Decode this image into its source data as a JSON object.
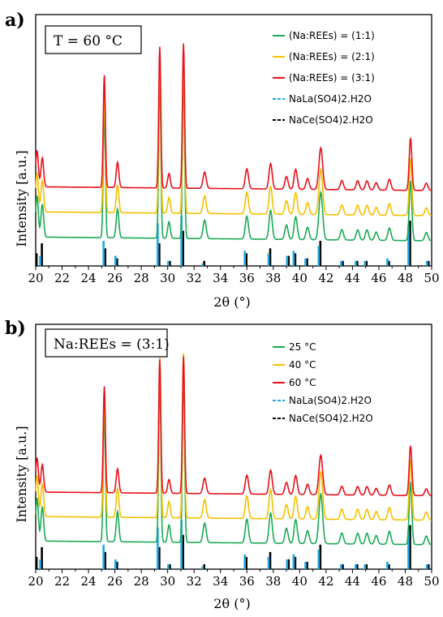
{
  "chart_data": [
    {
      "type": "line",
      "panel_label": "a)",
      "condition_label": "T = 60 °C",
      "xlabel": "2θ (°)",
      "ylabel": "Intensity [a.u.]",
      "xlim": [
        20,
        50
      ],
      "xticks": [
        "20",
        "22",
        "24",
        "26",
        "28",
        "29",
        "30",
        "31",
        "32",
        "33",
        "34",
        "35",
        "36",
        "37",
        "38",
        "39",
        "40",
        "41",
        "42",
        "43",
        "44",
        "45",
        "46",
        "47",
        "48",
        "49",
        "50"
      ],
      "xtick_values": [
        20,
        22,
        24,
        26,
        28,
        29,
        30,
        31,
        32,
        33,
        34,
        35,
        36,
        37,
        38,
        39,
        40,
        41,
        42,
        43,
        44,
        45,
        46,
        47,
        48,
        49,
        50
      ],
      "xtick_labels_shown": [
        "20",
        "22",
        "24",
        "26",
        "28",
        "30",
        "32",
        "34",
        "36",
        "38",
        "40",
        "42",
        "44",
        "46",
        "48",
        "50"
      ],
      "legend": [
        {
          "label": "(Na:REEs) = (1:1)",
          "color": "#1aaa55",
          "style": "solid"
        },
        {
          "label": "(Na:REEs) = (2:1)",
          "color": "#f5c000",
          "style": "solid"
        },
        {
          "label": "(Na:REEs) = (3:1)",
          "color": "#e8101a",
          "style": "solid"
        },
        {
          "label": "NaLa(SO4)2.H2O",
          "color": "#1fa8e0",
          "style": "dashed"
        },
        {
          "label": "NaCe(SO4)2.H2O",
          "color": "#000000",
          "style": "dashed"
        }
      ],
      "series": [
        {
          "name": "(Na:REEs) = (1:1)",
          "color": "#1aaa55",
          "baseline": 0.1,
          "scale": 0.82
        },
        {
          "name": "(Na:REEs) = (2:1)",
          "color": "#f5c000",
          "baseline": 0.2,
          "scale": 0.78
        },
        {
          "name": "(Na:REEs) = (3:1)",
          "color": "#e8101a",
          "baseline": 0.3,
          "scale": 0.72
        }
      ],
      "peaks": [
        {
          "x": 20.1,
          "h": 0.2,
          "w": 0.1
        },
        {
          "x": 20.5,
          "h": 0.16,
          "w": 0.1
        },
        {
          "x": 25.2,
          "h": 0.62,
          "w": 0.08
        },
        {
          "x": 26.2,
          "h": 0.14,
          "w": 0.1
        },
        {
          "x": 29.4,
          "h": 0.78,
          "w": 0.08
        },
        {
          "x": 30.1,
          "h": 0.08,
          "w": 0.1
        },
        {
          "x": 31.2,
          "h": 0.8,
          "w": 0.08
        },
        {
          "x": 32.8,
          "h": 0.09,
          "w": 0.12
        },
        {
          "x": 36.0,
          "h": 0.11,
          "w": 0.12
        },
        {
          "x": 37.8,
          "h": 0.14,
          "w": 0.12
        },
        {
          "x": 39.0,
          "h": 0.07,
          "w": 0.12
        },
        {
          "x": 39.7,
          "h": 0.11,
          "w": 0.12
        },
        {
          "x": 40.6,
          "h": 0.06,
          "w": 0.12
        },
        {
          "x": 41.6,
          "h": 0.23,
          "w": 0.14
        },
        {
          "x": 43.2,
          "h": 0.05,
          "w": 0.12
        },
        {
          "x": 44.4,
          "h": 0.05,
          "w": 0.12
        },
        {
          "x": 45.1,
          "h": 0.05,
          "w": 0.12
        },
        {
          "x": 45.8,
          "h": 0.04,
          "w": 0.12
        },
        {
          "x": 46.8,
          "h": 0.06,
          "w": 0.12
        },
        {
          "x": 48.4,
          "h": 0.29,
          "w": 0.1
        },
        {
          "x": 49.6,
          "h": 0.04,
          "w": 0.12
        }
      ],
      "reference_bars": [
        {
          "x": 20.0,
          "la": 0.0,
          "ce": 0.05
        },
        {
          "x": 20.4,
          "la": 0.04,
          "ce": 0.09
        },
        {
          "x": 25.2,
          "la": 0.1,
          "ce": 0.07
        },
        {
          "x": 26.1,
          "la": 0.04,
          "ce": 0.03
        },
        {
          "x": 29.3,
          "la": 0.17,
          "ce": 0.09
        },
        {
          "x": 30.1,
          "la": 0.02,
          "ce": 0.02
        },
        {
          "x": 31.1,
          "la": 0.2,
          "ce": 0.14
        },
        {
          "x": 32.7,
          "la": 0.01,
          "ce": 0.02
        },
        {
          "x": 35.9,
          "la": 0.06,
          "ce": 0.05
        },
        {
          "x": 37.7,
          "la": 0.05,
          "ce": 0.07
        },
        {
          "x": 39.1,
          "la": 0.04,
          "ce": 0.04
        },
        {
          "x": 39.6,
          "la": 0.06,
          "ce": 0.05
        },
        {
          "x": 40.5,
          "la": 0.03,
          "ce": 0.03
        },
        {
          "x": 41.5,
          "la": 0.08,
          "ce": 0.1
        },
        {
          "x": 43.2,
          "la": 0.02,
          "ce": 0.02
        },
        {
          "x": 44.3,
          "la": 0.02,
          "ce": 0.02
        },
        {
          "x": 45.0,
          "la": 0.02,
          "ce": 0.02
        },
        {
          "x": 46.7,
          "la": 0.03,
          "ce": 0.02
        },
        {
          "x": 48.3,
          "la": 0.16,
          "ce": 0.18
        },
        {
          "x": 49.7,
          "la": 0.02,
          "ce": 0.02
        }
      ]
    },
    {
      "type": "line",
      "panel_label": "b)",
      "condition_label": "Na:REEs = (3:1)",
      "xlabel": "2θ (°)",
      "ylabel": "Intensity [a.u.]",
      "xlim": [
        20,
        50
      ],
      "xtick_labels_shown": [
        "20",
        "22",
        "24",
        "26",
        "28",
        "30",
        "32",
        "34",
        "36",
        "38",
        "40",
        "42",
        "44",
        "46",
        "48",
        "50"
      ],
      "legend": [
        {
          "label": "25 °C",
          "color": "#1aaa55",
          "style": "solid"
        },
        {
          "label": "40 °C",
          "color": "#f5c000",
          "style": "solid"
        },
        {
          "label": "60 °C",
          "color": "#e8101a",
          "style": "solid"
        },
        {
          "label": "NaLa(SO4)2.H2O",
          "color": "#1fa8e0",
          "style": "dashed"
        },
        {
          "label": "NaCe(SO4)2.H2O",
          "color": "#000000",
          "style": "dashed"
        }
      ],
      "series": [
        {
          "name": "25 °C",
          "color": "#1aaa55",
          "baseline": 0.1,
          "scale": 0.88
        },
        {
          "name": "40 °C",
          "color": "#f5c000",
          "baseline": 0.2,
          "scale": 0.84
        },
        {
          "name": "60 °C",
          "color": "#e8101a",
          "baseline": 0.3,
          "scale": 0.7
        }
      ]
    }
  ]
}
